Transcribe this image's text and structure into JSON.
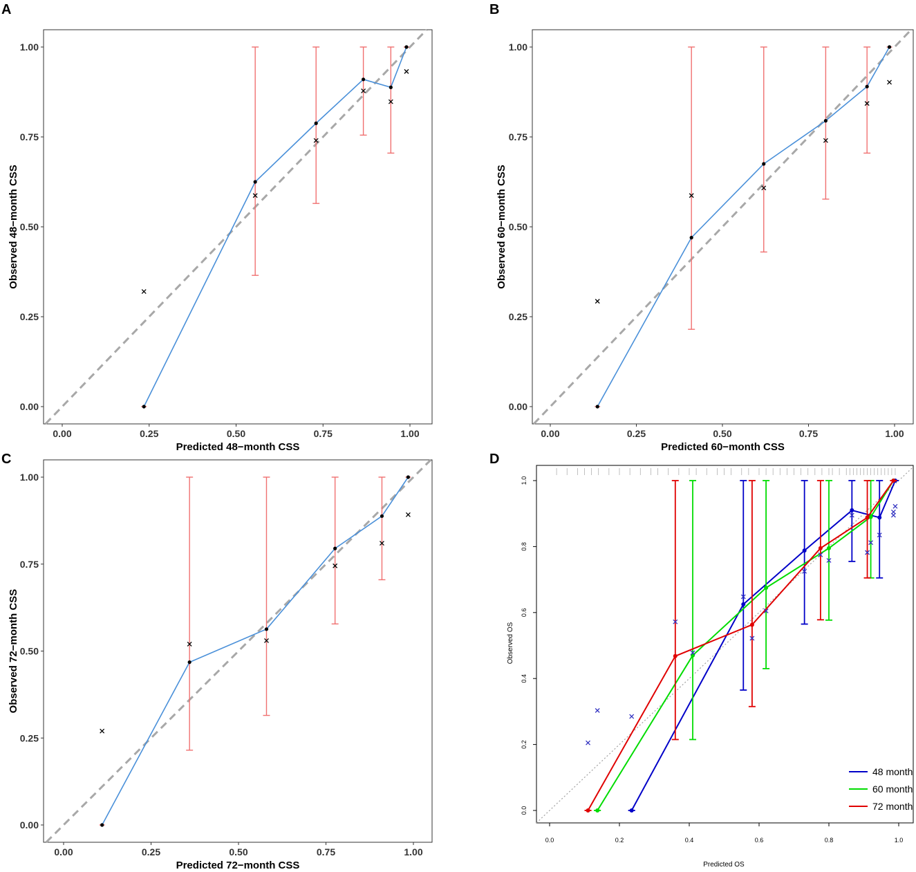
{
  "chart_data": [
    {
      "panel": "A",
      "type": "line",
      "xlabel": "Predicted 48−month CSS",
      "ylabel": "Observed 48−month CSS",
      "xlim": [
        0,
        1
      ],
      "ylim": [
        0,
        1
      ],
      "xticks": [
        "0.00",
        "0.25",
        "0.50",
        "0.75",
        "1.00"
      ],
      "yticks": [
        "0.00",
        "0.25",
        "0.50",
        "0.75",
        "1.00"
      ],
      "calibration": {
        "x": [
          0.235,
          0.555,
          0.73,
          0.866,
          0.945,
          0.99
        ],
        "y": [
          0.0,
          0.625,
          0.788,
          0.91,
          0.888,
          1.0
        ],
        "ci_low": [
          null,
          0.365,
          0.565,
          0.755,
          0.705,
          null
        ],
        "ci_high": [
          null,
          1.0,
          1.0,
          1.0,
          1.0,
          null
        ]
      },
      "corrected": {
        "x": [
          0.235,
          0.555,
          0.73,
          0.866,
          0.945,
          0.99
        ],
        "y": [
          0.32,
          0.587,
          0.74,
          0.878,
          0.848,
          0.932
        ]
      }
    },
    {
      "panel": "B",
      "type": "line",
      "xlabel": "Predicted 60−month CSS",
      "ylabel": "Observed 60−month CSS",
      "xlim": [
        0,
        1
      ],
      "ylim": [
        0,
        1
      ],
      "xticks": [
        "0.00",
        "0.25",
        "0.50",
        "0.75",
        "1.00"
      ],
      "yticks": [
        "0.00",
        "0.25",
        "0.50",
        "0.75",
        "1.00"
      ],
      "calibration": {
        "x": [
          0.137,
          0.41,
          0.62,
          0.8,
          0.92,
          0.985
        ],
        "y": [
          0.0,
          0.47,
          0.675,
          0.795,
          0.89,
          1.0
        ],
        "ci_low": [
          null,
          0.215,
          0.43,
          0.577,
          0.705,
          null
        ],
        "ci_high": [
          null,
          1.0,
          1.0,
          1.0,
          1.0,
          null
        ]
      },
      "corrected": {
        "x": [
          0.137,
          0.41,
          0.62,
          0.8,
          0.92,
          0.985
        ],
        "y": [
          0.293,
          0.587,
          0.608,
          0.74,
          0.843,
          0.902
        ]
      }
    },
    {
      "panel": "C",
      "type": "line",
      "xlabel": "Predicted 72−month CSS",
      "ylabel": "Observed 72−month CSS",
      "xlim": [
        0,
        1
      ],
      "ylim": [
        0,
        1
      ],
      "xticks": [
        "0.00",
        "0.25",
        "0.50",
        "0.75",
        "1.00"
      ],
      "yticks": [
        "0.00",
        "0.25",
        "0.50",
        "0.75",
        "1.00"
      ],
      "calibration": {
        "x": [
          0.11,
          0.36,
          0.58,
          0.776,
          0.91,
          0.985
        ],
        "y": [
          0.0,
          0.468,
          0.563,
          0.795,
          0.888,
          1.0
        ],
        "ci_low": [
          null,
          0.215,
          0.315,
          0.578,
          0.705,
          null
        ],
        "ci_high": [
          null,
          1.0,
          1.0,
          1.0,
          1.0,
          null
        ]
      },
      "corrected": {
        "x": [
          0.11,
          0.36,
          0.58,
          0.776,
          0.91,
          0.985
        ],
        "y": [
          0.27,
          0.52,
          0.53,
          0.745,
          0.81,
          0.892
        ]
      }
    },
    {
      "panel": "D",
      "type": "line",
      "xlabel": "Predicted OS",
      "ylabel": "Observed OS",
      "xlim": [
        0,
        1
      ],
      "ylim": [
        0,
        1
      ],
      "xticks": [
        "0.0",
        "0.2",
        "0.4",
        "0.6",
        "0.8",
        "1.0"
      ],
      "yticks": [
        "0.0",
        "0.2",
        "0.4",
        "0.6",
        "0.8",
        "1.0"
      ],
      "legend_position": "bottom-right",
      "series": [
        {
          "name": "48 month",
          "color": "#0000c8",
          "x": [
            0.235,
            0.555,
            0.73,
            0.866,
            0.945,
            0.99
          ],
          "y": [
            0.0,
            0.625,
            0.788,
            0.91,
            0.888,
            1.0
          ],
          "ci_low": [
            null,
            0.365,
            0.565,
            0.755,
            0.705,
            null
          ],
          "ci_high": [
            null,
            1.0,
            1.0,
            1.0,
            1.0,
            null
          ]
        },
        {
          "name": "60 month",
          "color": "#00dc00",
          "x": [
            0.137,
            0.41,
            0.62,
            0.8,
            0.92,
            0.985
          ],
          "y": [
            0.0,
            0.47,
            0.675,
            0.795,
            0.89,
            1.0
          ],
          "ci_low": [
            null,
            0.215,
            0.43,
            0.577,
            0.705,
            null
          ],
          "ci_high": [
            null,
            1.0,
            1.0,
            1.0,
            1.0,
            null
          ]
        },
        {
          "name": "72 month",
          "color": "#e00000",
          "x": [
            0.11,
            0.36,
            0.58,
            0.776,
            0.91,
            0.985
          ],
          "y": [
            0.0,
            0.468,
            0.563,
            0.795,
            0.888,
            1.0
          ],
          "ci_low": [
            null,
            0.215,
            0.315,
            0.578,
            0.705,
            null
          ],
          "ci_high": [
            null,
            1.0,
            1.0,
            1.0,
            1.0,
            null
          ]
        }
      ],
      "corrected": {
        "x": [
          0.11,
          0.137,
          0.235,
          0.36,
          0.41,
          0.555,
          0.58,
          0.62,
          0.73,
          0.776,
          0.8,
          0.866,
          0.91,
          0.92,
          0.945,
          0.985,
          0.985,
          0.99
        ],
        "y": [
          0.205,
          0.303,
          0.285,
          0.572,
          0.478,
          0.648,
          0.522,
          0.605,
          0.725,
          0.775,
          0.758,
          0.895,
          0.782,
          0.812,
          0.835,
          0.895,
          0.905,
          0.922
        ]
      },
      "rug_x": [
        0.02,
        0.05,
        0.08,
        0.1,
        0.12,
        0.14,
        0.17,
        0.2,
        0.23,
        0.26,
        0.29,
        0.31,
        0.34,
        0.37,
        0.4,
        0.42,
        0.45,
        0.48,
        0.5,
        0.52,
        0.55,
        0.57,
        0.6,
        0.62,
        0.64,
        0.66,
        0.68,
        0.7,
        0.72,
        0.74,
        0.76,
        0.78,
        0.8,
        0.81,
        0.83,
        0.85,
        0.86,
        0.87,
        0.88,
        0.89,
        0.9,
        0.91,
        0.92,
        0.93,
        0.94,
        0.95,
        0.96,
        0.97,
        0.98,
        0.99
      ]
    }
  ],
  "panel_labels": {
    "A": "A",
    "B": "B",
    "C": "C",
    "D": "D"
  }
}
